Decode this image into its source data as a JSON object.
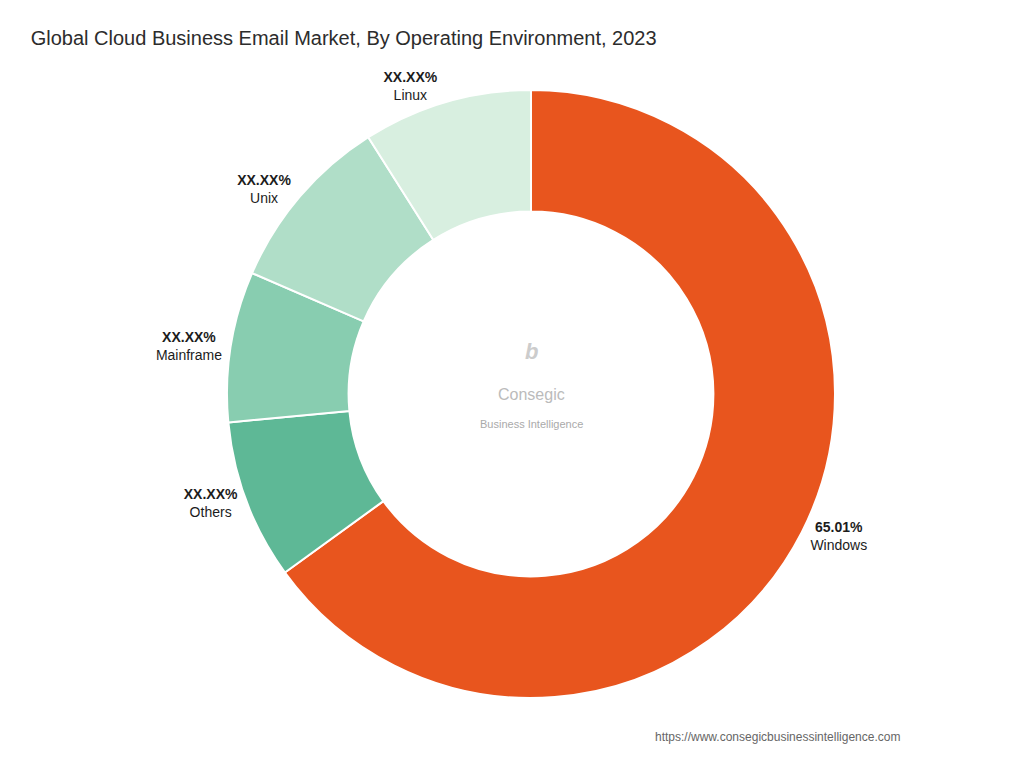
{
  "chart_data": {
    "type": "pie",
    "title": "Global Cloud Business Email Market, By Operating Environment, 2023",
    "categories": [
      "Windows",
      "Others",
      "Mainframe",
      "Unix",
      "Linux"
    ],
    "values": [
      65.01,
      8.5,
      8.0,
      9.5,
      8.99
    ],
    "value_labels": [
      "65.01%",
      "XX.XX%",
      "XX.XX%",
      "XX.XX%",
      "XX.XX%"
    ],
    "colors": [
      "#E8551E",
      "#5EB896",
      "#88CDB0",
      "#B0DEC8",
      "#D8EFE0"
    ],
    "data_labels": true,
    "annotations": [
      "b",
      "Consegic",
      "Business Intelligence",
      "https://www.consegicbusinessintelligence.com"
    ]
  }
}
